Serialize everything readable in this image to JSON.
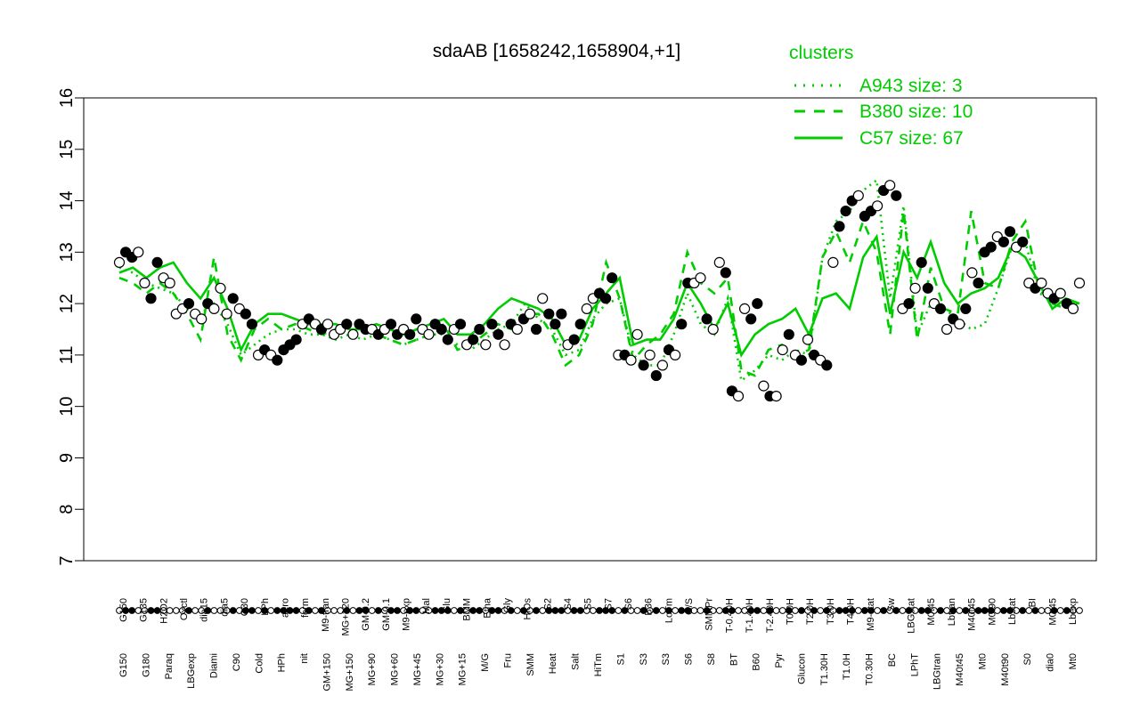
{
  "chart_data": {
    "type": "line",
    "title": "sdaAB [1658242,1658904,+1]",
    "ylim": [
      7,
      16
    ],
    "yticks": [
      7,
      8,
      9,
      10,
      11,
      12,
      13,
      14,
      15,
      16
    ],
    "x_tick_labels_top": [
      "G150",
      "G135",
      "H2O2",
      "Oxctl",
      "dia15",
      "dia5",
      "C30",
      "LPh",
      "aero",
      "ferm",
      "M9-tran",
      "MG+120",
      "GM-0.2",
      "GM-0.1",
      "M9-exp",
      "Mal",
      "Glu",
      "BMM",
      "Etha",
      "Gly",
      "HiOs",
      "S2",
      "S4",
      "S5",
      "S7",
      "S6",
      "B36",
      "LoTm",
      "G/S",
      "SMMPr",
      "T-0.40H",
      "T-1.40H",
      "T-2.40H",
      "T0.0H",
      "T2.0H",
      "T3.0H",
      "T4.0H",
      "M9-stat",
      "Sw",
      "LBGstat",
      "M0t45",
      "Lbtran",
      "M40t45",
      "M0t90",
      "Lbstat",
      "BI",
      "M0t45",
      "Lbexp"
    ],
    "x_tick_labels_bottom": [
      "G150",
      "G180",
      "Paraq",
      "LBGexp",
      "Diami",
      "C90",
      "Cold",
      "HPh",
      "nit",
      "GM+150",
      "MG+150",
      "MG+90",
      "MG+60",
      "MG+45",
      "MG+30",
      "MG+15",
      "M/G",
      "Fru",
      "SMM",
      "Heat",
      "Salt",
      "HiTm",
      "S1",
      "S3",
      "S3",
      "S6",
      "S8",
      "BT",
      "B60",
      "Pyr",
      "Glucon",
      "T1.30H",
      "T1.0H",
      "T0.30H",
      "BC",
      "LPhT",
      "LBGtran",
      "M40t45",
      "Mt0",
      "M40t90",
      "S0",
      "dia0",
      "Mt0"
    ],
    "series": [
      {
        "name": "A943 size: 3",
        "style": "dotted",
        "color": "#00cc00",
        "values": [
          12.7,
          12.6,
          12.4,
          12.3,
          12.2,
          11.9,
          11.8,
          12.0,
          11.6,
          11.0,
          11.2,
          11.4,
          11.5,
          11.5,
          11.4,
          11.4,
          11.3,
          11.4,
          11.3,
          11.4,
          11.3,
          11.2,
          11.3,
          11.4,
          11.4,
          11.2,
          11.1,
          11.3,
          11.5,
          11.6,
          12.0,
          11.7,
          11.5,
          11.0,
          11.1,
          11.7,
          12.0,
          12.1,
          11.0,
          10.8,
          10.8,
          11.4,
          12.2,
          11.6,
          11.4,
          12.1,
          10.5,
          10.7,
          11.0,
          10.9,
          11.1,
          11.0,
          12.9,
          13.6,
          13.8,
          14.2,
          14.4,
          12.1,
          13.9,
          11.4,
          12.0,
          11.9,
          11.7,
          11.5,
          11.6,
          12.3,
          13.1,
          13.2,
          12.2,
          12.1,
          12.0,
          12.0
        ]
      },
      {
        "name": "B380 size: 10",
        "style": "dashed",
        "color": "#00cc00",
        "values": [
          12.5,
          12.4,
          12.2,
          12.4,
          12.2,
          11.8,
          11.3,
          12.9,
          11.4,
          10.9,
          11.5,
          11.7,
          11.5,
          11.6,
          11.5,
          11.4,
          11.5,
          11.4,
          11.5,
          11.4,
          11.3,
          11.2,
          11.3,
          11.4,
          11.6,
          11.1,
          11.2,
          11.4,
          11.6,
          11.5,
          11.8,
          11.8,
          11.4,
          10.8,
          11.0,
          11.6,
          12.8,
          12.1,
          10.9,
          11.2,
          11.4,
          11.8,
          13.0,
          12.4,
          12.2,
          12.5,
          10.7,
          10.6,
          11.1,
          11.2,
          11.0,
          11.1,
          12.9,
          13.4,
          12.8,
          13.6,
          13.0,
          11.4,
          13.8,
          11.3,
          12.7,
          11.9,
          11.8,
          13.8,
          12.4,
          12.3,
          13.2,
          13.6,
          12.3,
          12.0,
          11.9,
          12.1
        ]
      },
      {
        "name": "C57 size: 67",
        "style": "solid",
        "color": "#00cc00",
        "values": [
          12.6,
          12.7,
          12.5,
          12.7,
          12.8,
          12.4,
          12.1,
          12.5,
          11.9,
          11.1,
          11.6,
          11.8,
          11.8,
          11.7,
          11.6,
          11.6,
          11.6,
          11.5,
          11.5,
          11.6,
          11.5,
          11.4,
          11.5,
          11.6,
          11.7,
          11.4,
          11.4,
          11.6,
          11.9,
          12.1,
          12.0,
          11.9,
          11.7,
          11.2,
          11.3,
          11.9,
          12.2,
          12.5,
          11.2,
          11.3,
          11.3,
          11.7,
          12.4,
          12.0,
          11.5,
          12.0,
          11.0,
          11.4,
          11.6,
          11.7,
          11.9,
          11.4,
          12.1,
          12.2,
          11.9,
          12.9,
          13.3,
          11.8,
          13.0,
          12.5,
          13.2,
          12.4,
          12.0,
          12.2,
          12.3,
          12.5,
          13.1,
          12.9,
          12.4,
          11.9,
          12.1,
          12.0
        ]
      }
    ],
    "points": [
      [
        12.8,
        false
      ],
      [
        13.0,
        true
      ],
      [
        12.9,
        true
      ],
      [
        13.0,
        false
      ],
      [
        12.4,
        false
      ],
      [
        12.1,
        true
      ],
      [
        12.8,
        true
      ],
      [
        12.5,
        false
      ],
      [
        12.4,
        false
      ],
      [
        11.8,
        false
      ],
      [
        11.9,
        false
      ],
      [
        12.0,
        true
      ],
      [
        11.8,
        false
      ],
      [
        11.7,
        false
      ],
      [
        12.0,
        true
      ],
      [
        11.9,
        false
      ],
      [
        12.3,
        false
      ],
      [
        11.8,
        false
      ],
      [
        12.1,
        true
      ],
      [
        11.9,
        false
      ],
      [
        11.8,
        true
      ],
      [
        11.6,
        true
      ],
      [
        11.0,
        false
      ],
      [
        11.1,
        true
      ],
      [
        11.0,
        false
      ],
      [
        10.9,
        true
      ],
      [
        11.1,
        true
      ],
      [
        11.2,
        true
      ],
      [
        11.3,
        true
      ],
      [
        11.6,
        false
      ],
      [
        11.7,
        true
      ],
      [
        11.6,
        false
      ],
      [
        11.5,
        true
      ],
      [
        11.6,
        false
      ],
      [
        11.4,
        false
      ],
      [
        11.5,
        false
      ],
      [
        11.6,
        true
      ],
      [
        11.4,
        false
      ],
      [
        11.6,
        true
      ],
      [
        11.5,
        true
      ],
      [
        11.5,
        false
      ],
      [
        11.4,
        true
      ],
      [
        11.5,
        false
      ],
      [
        11.6,
        true
      ],
      [
        11.4,
        true
      ],
      [
        11.5,
        false
      ],
      [
        11.4,
        true
      ],
      [
        11.7,
        true
      ],
      [
        11.5,
        false
      ],
      [
        11.4,
        false
      ],
      [
        11.6,
        true
      ],
      [
        11.5,
        true
      ],
      [
        11.3,
        true
      ],
      [
        11.5,
        false
      ],
      [
        11.6,
        true
      ],
      [
        11.2,
        false
      ],
      [
        11.3,
        true
      ],
      [
        11.5,
        true
      ],
      [
        11.2,
        false
      ],
      [
        11.6,
        true
      ],
      [
        11.4,
        true
      ],
      [
        11.2,
        false
      ],
      [
        11.6,
        true
      ],
      [
        11.5,
        false
      ],
      [
        11.7,
        true
      ],
      [
        11.8,
        false
      ],
      [
        11.5,
        true
      ],
      [
        12.1,
        false
      ],
      [
        11.8,
        true
      ],
      [
        11.6,
        true
      ],
      [
        11.8,
        true
      ],
      [
        11.2,
        false
      ],
      [
        11.3,
        true
      ],
      [
        11.6,
        true
      ],
      [
        11.9,
        false
      ],
      [
        12.1,
        false
      ],
      [
        12.2,
        true
      ],
      [
        12.1,
        true
      ],
      [
        12.5,
        true
      ],
      [
        11.0,
        false
      ],
      [
        11.0,
        true
      ],
      [
        10.9,
        false
      ],
      [
        11.4,
        false
      ],
      [
        10.8,
        true
      ],
      [
        11.0,
        false
      ],
      [
        10.6,
        true
      ],
      [
        10.8,
        false
      ],
      [
        11.1,
        true
      ],
      [
        11.0,
        false
      ],
      [
        11.6,
        true
      ],
      [
        12.4,
        true
      ],
      [
        12.4,
        false
      ],
      [
        12.5,
        false
      ],
      [
        11.7,
        true
      ],
      [
        11.5,
        false
      ],
      [
        12.8,
        false
      ],
      [
        12.6,
        true
      ],
      [
        10.3,
        true
      ],
      [
        10.2,
        false
      ],
      [
        11.9,
        false
      ],
      [
        11.7,
        true
      ],
      [
        12.0,
        true
      ],
      [
        10.4,
        false
      ],
      [
        10.2,
        true
      ],
      [
        10.2,
        false
      ],
      [
        11.1,
        false
      ],
      [
        11.4,
        true
      ],
      [
        11.0,
        false
      ],
      [
        10.9,
        true
      ],
      [
        11.3,
        false
      ],
      [
        11.0,
        true
      ],
      [
        10.9,
        false
      ],
      [
        10.8,
        true
      ],
      [
        12.8,
        false
      ],
      [
        13.5,
        true
      ],
      [
        13.8,
        true
      ],
      [
        14.0,
        true
      ],
      [
        14.1,
        false
      ],
      [
        13.7,
        true
      ],
      [
        13.8,
        true
      ],
      [
        13.9,
        false
      ],
      [
        14.2,
        true
      ],
      [
        14.3,
        false
      ],
      [
        14.1,
        true
      ],
      [
        11.9,
        false
      ],
      [
        12.0,
        true
      ],
      [
        12.3,
        false
      ],
      [
        12.8,
        true
      ],
      [
        12.3,
        true
      ],
      [
        12.0,
        false
      ],
      [
        11.9,
        true
      ],
      [
        11.5,
        false
      ],
      [
        11.7,
        true
      ],
      [
        11.6,
        false
      ],
      [
        11.9,
        true
      ],
      [
        12.6,
        false
      ],
      [
        12.4,
        true
      ],
      [
        13.0,
        true
      ],
      [
        13.1,
        true
      ],
      [
        13.3,
        false
      ],
      [
        13.2,
        true
      ],
      [
        13.4,
        true
      ],
      [
        13.1,
        false
      ],
      [
        13.2,
        true
      ],
      [
        12.4,
        false
      ],
      [
        12.3,
        true
      ],
      [
        12.4,
        false
      ],
      [
        12.2,
        false
      ],
      [
        12.1,
        true
      ],
      [
        12.2,
        false
      ],
      [
        12.0,
        true
      ],
      [
        11.9,
        false
      ],
      [
        12.4,
        false
      ]
    ]
  },
  "legend": {
    "title": "clusters",
    "color": "#00cc00",
    "entries": [
      "A943 size: 3",
      "B380 size: 10",
      "C57 size: 67"
    ]
  }
}
